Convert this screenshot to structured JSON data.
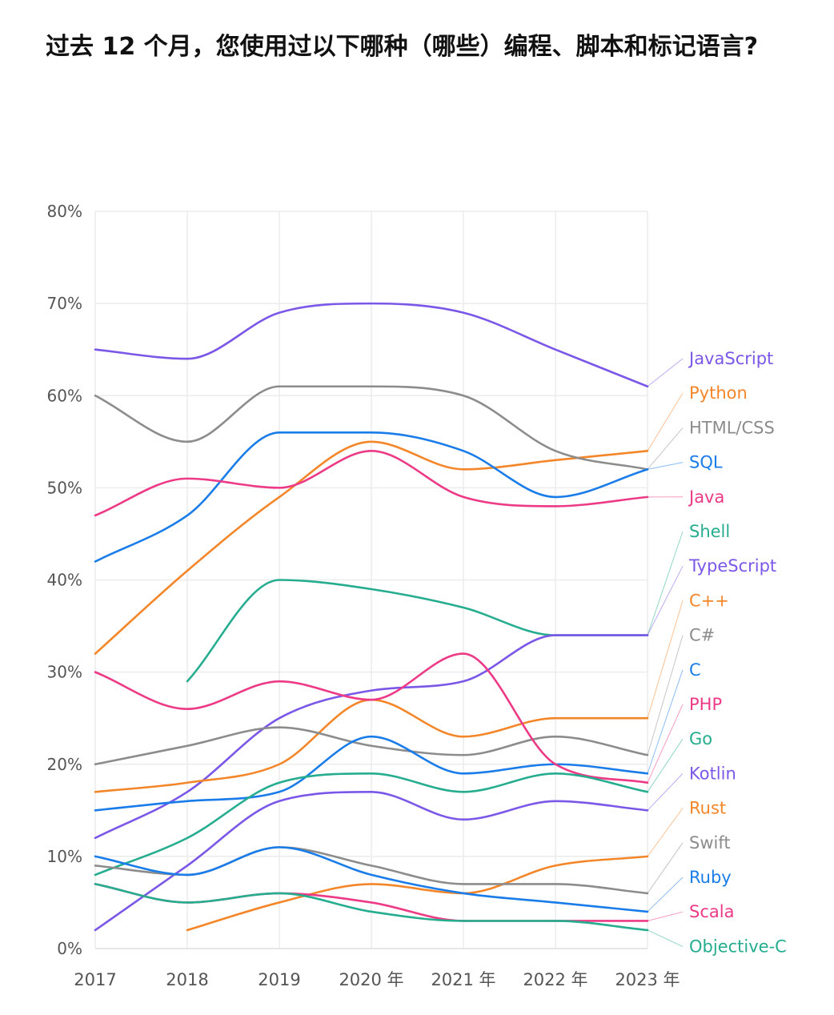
{
  "chart_data": {
    "type": "line",
    "title": "过去 12 个月，您使用过以下哪种（哪些）编程、脚本和标记语言?",
    "categories": [
      "2017",
      "2018",
      "2019",
      "2020 年",
      "2021 年",
      "2022 年",
      "2023 年"
    ],
    "ylim": [
      0,
      80
    ],
    "yticks": [
      "0%",
      "10%",
      "20%",
      "30%",
      "40%",
      "50%",
      "60%",
      "70%",
      "80%"
    ],
    "grid": true,
    "legend": "right, end-of-line labels",
    "series": [
      {
        "name": "JavaScript",
        "color": "#7b57e8",
        "values": [
          65,
          64,
          69,
          70,
          69,
          65,
          61
        ]
      },
      {
        "name": "Python",
        "color": "#f4862a",
        "values": [
          32,
          41,
          49,
          55,
          52,
          53,
          54
        ]
      },
      {
        "name": "HTML/CSS",
        "color": "#8c8c8c",
        "values": [
          60,
          55,
          61,
          61,
          60,
          54,
          52
        ]
      },
      {
        "name": "SQL",
        "color": "#1a7ce8",
        "values": [
          42,
          47,
          56,
          56,
          54,
          49,
          52
        ]
      },
      {
        "name": "Java",
        "color": "#ec3a86",
        "values": [
          47,
          51,
          50,
          54,
          49,
          48,
          49
        ]
      },
      {
        "name": "Shell",
        "color": "#26ac8f",
        "values": [
          null,
          29,
          40,
          39,
          37,
          34,
          34
        ]
      },
      {
        "name": "TypeScript",
        "color": "#7b57e8",
        "values": [
          12,
          17,
          25,
          28,
          29,
          34,
          34
        ]
      },
      {
        "name": "C++",
        "color": "#f4862a",
        "values": [
          17,
          18,
          20,
          27,
          23,
          25,
          25
        ]
      },
      {
        "name": "C#",
        "color": "#8c8c8c",
        "values": [
          20,
          22,
          24,
          22,
          21,
          23,
          21
        ]
      },
      {
        "name": "C",
        "color": "#1a7ce8",
        "values": [
          15,
          16,
          17,
          23,
          19,
          20,
          19
        ]
      },
      {
        "name": "PHP",
        "color": "#ec3a86",
        "values": [
          30,
          26,
          29,
          27,
          32,
          20,
          18
        ]
      },
      {
        "name": "Go",
        "color": "#26ac8f",
        "values": [
          8,
          12,
          18,
          19,
          17,
          19,
          17
        ]
      },
      {
        "name": "Kotlin",
        "color": "#7b57e8",
        "values": [
          2,
          9,
          16,
          17,
          14,
          16,
          15
        ]
      },
      {
        "name": "Rust",
        "color": "#f4862a",
        "values": [
          null,
          2,
          5,
          7,
          6,
          9,
          10
        ]
      },
      {
        "name": "Swift",
        "color": "#8c8c8c",
        "values": [
          9,
          8,
          11,
          9,
          7,
          7,
          6
        ]
      },
      {
        "name": "Ruby",
        "color": "#1a7ce8",
        "values": [
          10,
          8,
          11,
          8,
          6,
          5,
          4
        ]
      },
      {
        "name": "Scala",
        "color": "#ec3a86",
        "values": [
          7,
          5,
          6,
          5,
          3,
          3,
          3
        ]
      },
      {
        "name": "Objective-C",
        "color": "#26ac8f",
        "values": [
          7,
          5,
          6,
          4,
          3,
          3,
          2
        ]
      }
    ]
  }
}
